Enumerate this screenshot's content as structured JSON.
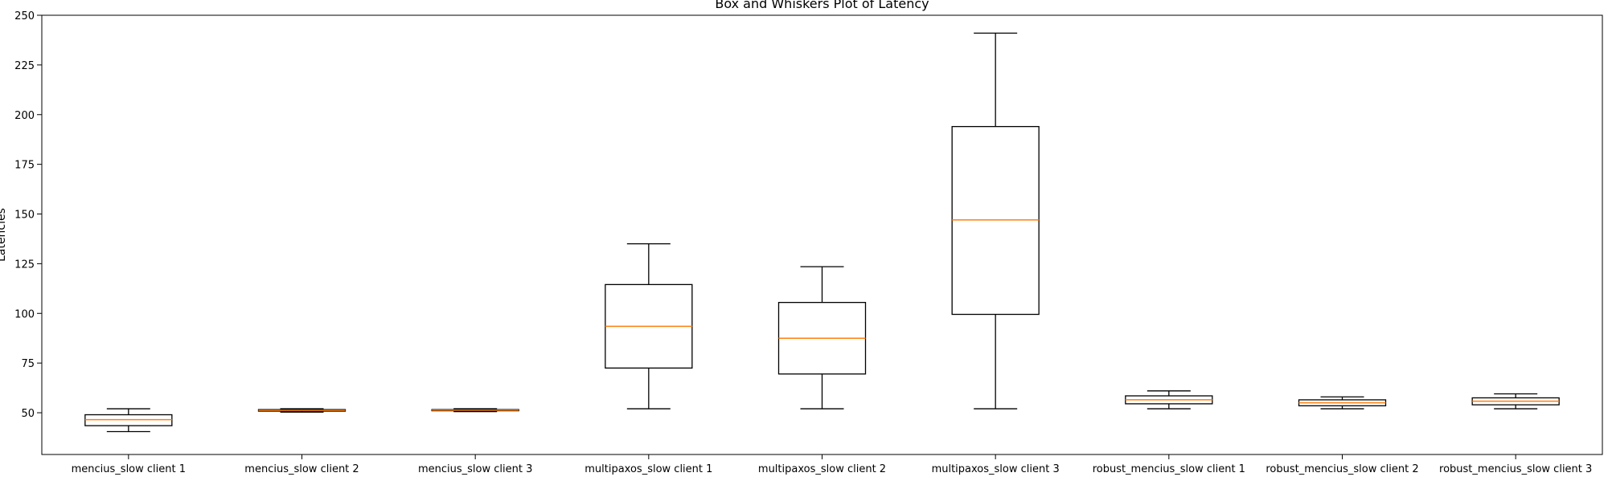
{
  "chart_data": {
    "type": "box",
    "title": "Box and Whiskers Plot of Latency",
    "xlabel": "",
    "ylabel": "Latencies",
    "ylim": [
      29,
      250
    ],
    "yticks": [
      50,
      75,
      100,
      125,
      150,
      175,
      200,
      225,
      250
    ],
    "grid": false,
    "categories": [
      "mencius_slow client 1",
      "mencius_slow client 2",
      "mencius_slow client 3",
      "multipaxos_slow client 1",
      "multipaxos_slow client 2",
      "multipaxos_slow client 3",
      "robust_mencius_slow client 1",
      "robust_mencius_slow client 2",
      "robust_mencius_slow client 3"
    ],
    "boxes": [
      {
        "whisker_low": 40.5,
        "q1": 43.5,
        "median": 46.5,
        "q3": 49.0,
        "whisker_high": 52.0
      },
      {
        "whisker_low": 50.3,
        "q1": 50.8,
        "median": 51.2,
        "q3": 51.6,
        "whisker_high": 52.0
      },
      {
        "whisker_low": 50.6,
        "q1": 51.0,
        "median": 51.3,
        "q3": 51.6,
        "whisker_high": 52.0
      },
      {
        "whisker_low": 52.0,
        "q1": 72.5,
        "median": 93.5,
        "q3": 114.5,
        "whisker_high": 135.0
      },
      {
        "whisker_low": 52.0,
        "q1": 69.5,
        "median": 87.5,
        "q3": 105.5,
        "whisker_high": 123.5
      },
      {
        "whisker_low": 52.0,
        "q1": 99.5,
        "median": 147.0,
        "q3": 194.0,
        "whisker_high": 241.0
      },
      {
        "whisker_low": 52.0,
        "q1": 54.5,
        "median": 56.5,
        "q3": 58.5,
        "whisker_high": 61.0
      },
      {
        "whisker_low": 52.0,
        "q1": 53.5,
        "median": 55.0,
        "q3": 56.5,
        "whisker_high": 58.0
      },
      {
        "whisker_low": 52.0,
        "q1": 54.0,
        "median": 55.8,
        "q3": 57.5,
        "whisker_high": 59.5
      }
    ],
    "colors": {
      "box": "#000000",
      "median": "#ff7f0e",
      "whisker": "#000000",
      "axes": "#000000"
    }
  }
}
